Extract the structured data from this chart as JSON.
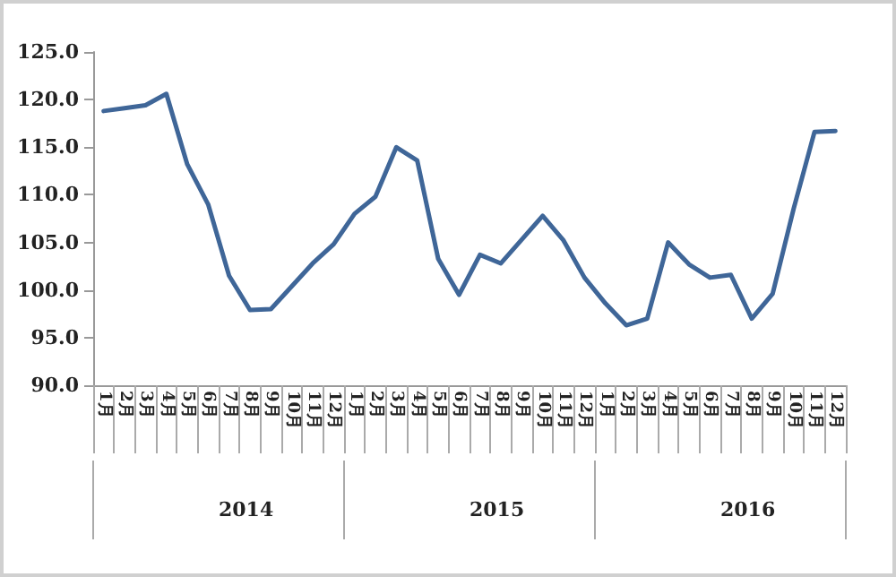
{
  "chart_data": {
    "type": "line",
    "categories": [
      "1月",
      "2月",
      "3月",
      "4月",
      "5月",
      "6月",
      "7月",
      "8月",
      "9月",
      "10月",
      "11月",
      "12月",
      "1月",
      "2月",
      "3月",
      "4月",
      "5月",
      "6月",
      "7月",
      "8月",
      "9月",
      "10月",
      "11月",
      "12月",
      "1月",
      "2月",
      "3月",
      "4月",
      "5月",
      "6月",
      "7月",
      "8月",
      "9月",
      "10月",
      "11月",
      "12月"
    ],
    "series": [
      {
        "color": "#3f6698",
        "values": [
          118.8,
          119.1,
          119.4,
          120.6,
          113.2,
          109.0,
          101.5,
          97.9,
          98.0,
          100.4,
          102.8,
          104.8,
          108.0,
          109.8,
          115.0,
          113.6,
          103.3,
          99.5,
          103.7,
          102.8,
          105.3,
          107.8,
          105.2,
          101.3,
          98.6,
          96.3,
          97.0,
          105.0,
          102.7,
          101.3,
          101.6,
          97.0,
          99.6,
          108.5,
          116.6,
          116.7
        ]
      }
    ],
    "ylim": [
      90,
      125
    ],
    "yticks": [
      {
        "value": 90,
        "label": "90.0"
      },
      {
        "value": 95,
        "label": "95.0"
      },
      {
        "value": 100,
        "label": "100.0"
      },
      {
        "value": 105,
        "label": "105.0"
      },
      {
        "value": 110,
        "label": "110.0"
      },
      {
        "value": 115,
        "label": "115.0"
      },
      {
        "value": 120,
        "label": "120.0"
      },
      {
        "value": 125,
        "label": "125.0"
      }
    ],
    "annotations": [
      "2014",
      "2015",
      "2016"
    ],
    "grid": false,
    "marker": "none",
    "line_style": "solid"
  }
}
